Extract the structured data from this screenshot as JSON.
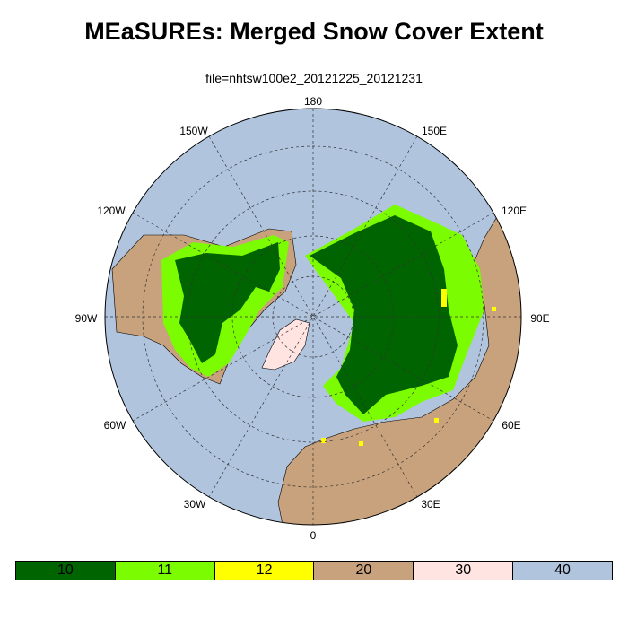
{
  "title": "MEaSUREs: Merged Snow Cover Extent",
  "subtitle": "file=nhtsw100e2_20121225_20121231",
  "longitude_labels": {
    "lon_180": "180",
    "lon_150w": "150W",
    "lon_150e": "150E",
    "lon_120w": "120W",
    "lon_120e": "120E",
    "lon_90w": "90W",
    "lon_90e": "90E",
    "lon_60w": "60W",
    "lon_60e": "60E",
    "lon_30w": "30W",
    "lon_30e": "30E",
    "lon_0": "0"
  },
  "legend": [
    {
      "label": "10",
      "color": "#006400"
    },
    {
      "label": "11",
      "color": "#7cfc00"
    },
    {
      "label": "12",
      "color": "#ffff00"
    },
    {
      "label": "20",
      "color": "#c8a27c"
    },
    {
      "label": "30",
      "color": "#ffe4e1"
    },
    {
      "label": "40",
      "color": "#b0c4de"
    }
  ],
  "colors": {
    "ocean": "#b0c4de",
    "land": "#c8a27c",
    "ice": "#ffe4e1",
    "snow": "#006400",
    "snow_light": "#7cfc00",
    "snow_yellow": "#ffff00"
  }
}
